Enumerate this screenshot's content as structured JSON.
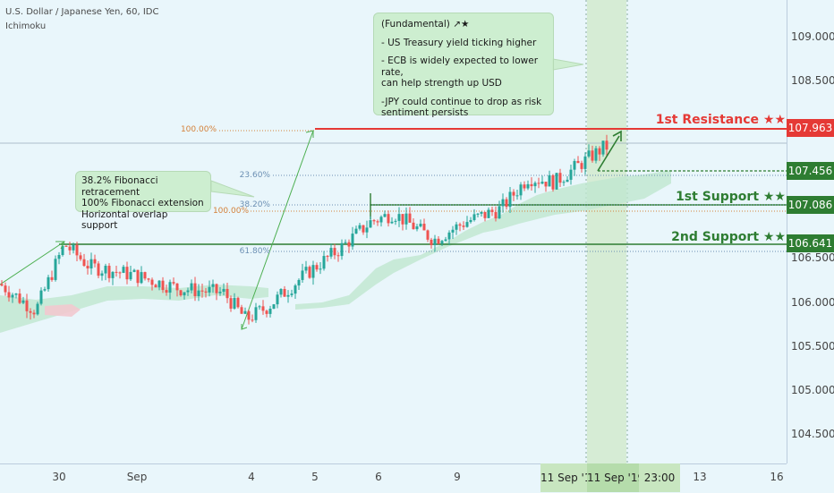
{
  "header": {
    "symbol_line": "U.S. Dollar / Japanese Yen, 60, IDC",
    "indicator": "Ichimoku"
  },
  "notes": {
    "fundamental": {
      "title": "(Fundamental) ↗★",
      "line1": "- US Treasury yield ticking higher",
      "line2": "- ECB is widely expected to lower rate,\ncan help strength up USD",
      "line3": "-JPY could continue to drop as risk\nsentiment persists"
    },
    "fib": {
      "line1": "38.2% Fibonacci retracement",
      "line2": "100% Fibonacci extension",
      "line3": "Horizontal overlap support"
    }
  },
  "levels": {
    "resistance1": {
      "label": "1st Resistance ★★",
      "price": "107.963",
      "color": "#e53935"
    },
    "support1": {
      "label": "1st Support ★★",
      "price": "107.086",
      "color": "#2e7d32"
    },
    "support2": {
      "label": "2nd Support ★★",
      "price": "106.641",
      "color": "#2e7d32"
    },
    "mid": {
      "price": "107.456",
      "color": "#2e7d32"
    }
  },
  "fib_labels": {
    "ext_100_top": "100.00%",
    "ret_236": "23.60%",
    "ret_382": "38.20%",
    "ext_100_low": "100.00%",
    "ret_618": "61.80%"
  },
  "y_ticks": [
    "109.000",
    "108.500",
    "106.500",
    "106.000",
    "105.500",
    "105.000",
    "104.500"
  ],
  "x_ticks": [
    "30",
    "Sep",
    "4",
    "5",
    "6",
    "9",
    "13",
    "16"
  ],
  "x_highlight": {
    "left": "11 Sep '1",
    "right": "11 Sep '19",
    "time": "23:00"
  },
  "chart_data": {
    "type": "line",
    "title": "U.S. Dollar / Japanese Yen, 60, IDC",
    "ylim": [
      104.2,
      109.4
    ],
    "series": [
      {
        "name": "",
        "x": [
          "Aug 29",
          "Aug 30",
          "Aug 30",
          "Aug 31",
          "Sep 2",
          "Sep 3",
          "Sep 3",
          "Sep 4",
          "Sep 4",
          "Sep 5",
          "Sep 5",
          "Sep 6",
          "Sep 6",
          "Sep 9",
          "Sep 9",
          "Sep 10",
          "Sep 10",
          "Sep 11",
          "Sep 11"
        ],
        "values": [
          106.2,
          105.9,
          106.65,
          106.4,
          106.3,
          106.15,
          106.1,
          105.8,
          105.95,
          106.3,
          106.6,
          106.9,
          107.0,
          106.7,
          106.9,
          107.05,
          107.4,
          107.35,
          107.75
        ]
      }
    ],
    "levels": [
      {
        "name": "1st Resistance",
        "value": 107.963
      },
      {
        "name": "1st Support",
        "value": 107.086
      },
      {
        "name": "2nd Support",
        "value": 106.641
      },
      {
        "name": "",
        "value": 107.456
      }
    ]
  }
}
